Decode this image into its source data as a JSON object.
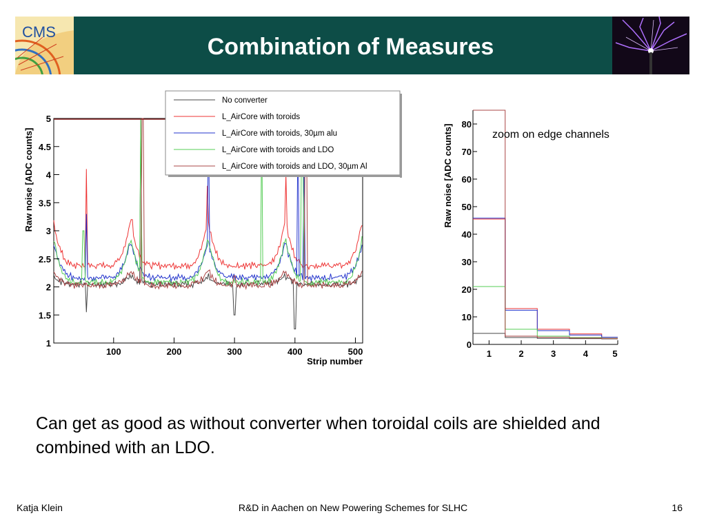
{
  "slide": {
    "title": "Combination of Measures",
    "caption": "Can get as good as without converter when toroidal coils are shielded and combined with an LDO.",
    "footer": {
      "author": "Katja Klein",
      "center": "R&D in Aachen on New Powering Schemes for SLHC",
      "page": "16"
    },
    "logo_text": "CMS",
    "colors": {
      "title_bg": "#0d4d47",
      "title_text": "#ffffff"
    }
  },
  "chart_data": [
    {
      "type": "line",
      "xlabel": "Strip number",
      "ylabel": "Raw noise [ADC counts]",
      "xlim": [
        1,
        512
      ],
      "ylim": [
        1,
        5
      ],
      "xticks": [
        "100",
        "200",
        "300",
        "400",
        "500"
      ],
      "yticks": [
        "1",
        "1.5",
        "2",
        "2.5",
        "3",
        "3.5",
        "4",
        "4.5",
        "5"
      ],
      "legend_position": "top-right",
      "series": [
        {
          "name": "No converter",
          "color": "#444444",
          "baseline": 2.05,
          "edge_peak": 2.2,
          "spikes": [
            [
              55,
              1.55
            ],
            [
              145,
              5.0
            ],
            [
              300,
              1.5
            ],
            [
              400,
              1.25
            ]
          ]
        },
        {
          "name": "L_AirCore with toroids",
          "color": "#ee3333",
          "baseline": 2.38,
          "edge_peak": 3.2,
          "spikes": [
            [
              55,
              4.1
            ],
            [
              130,
              3.2
            ],
            [
              255,
              3.8
            ],
            [
              385,
              4.0
            ],
            [
              520,
              4.0
            ]
          ]
        },
        {
          "name": "L_AirCore with toroids, 30µm alu",
          "color": "#2233cc",
          "baseline": 2.17,
          "edge_peak": 2.8,
          "spikes": [
            [
              55,
              3.3
            ],
            [
              257,
              5.0
            ],
            [
              405,
              5.0
            ],
            [
              415,
              4.3
            ],
            [
              520,
              3.6
            ]
          ]
        },
        {
          "name": "L_AirCore with toroids and LDO",
          "color": "#55cc55",
          "baseline": 2.08,
          "edge_peak": 2.9,
          "spikes": [
            [
              50,
              3.0
            ],
            [
              145,
              5.0
            ],
            [
              345,
              5.0
            ],
            [
              412,
              4.8
            ]
          ]
        },
        {
          "name": "L_AirCore with toroids and LDO, 30µm Al",
          "color": "#aa4444",
          "baseline": 2.03,
          "edge_peak": 2.3,
          "spikes": [
            [
              62,
              2.0
            ],
            [
              148,
              5.0
            ],
            [
              300,
              2.2
            ],
            [
              418,
              5.0
            ]
          ]
        }
      ]
    },
    {
      "type": "line",
      "subtype": "step",
      "annotation": "zoom on edge channels",
      "ylabel": "Raw noise [ADC counts]",
      "xlim": [
        0.5,
        5
      ],
      "ylim": [
        0,
        85
      ],
      "xticks": [
        "1",
        "2",
        "3",
        "4",
        "5"
      ],
      "yticks": [
        "0",
        "10",
        "20",
        "30",
        "40",
        "50",
        "60",
        "70",
        "80"
      ],
      "bins": [
        1,
        2,
        3,
        4,
        5
      ],
      "series": [
        {
          "name": "No converter",
          "color": "#444444",
          "values": [
            4,
            2.5,
            2.2,
            2.1,
            2.0
          ]
        },
        {
          "name": "L_AirCore with toroids",
          "color": "#ee3333",
          "values": [
            45.5,
            13.0,
            5.5,
            3.8,
            2.6
          ]
        },
        {
          "name": "L_AirCore with toroids, 30µm alu",
          "color": "#2233cc",
          "values": [
            45.8,
            12.4,
            5.0,
            3.4,
            2.6
          ]
        },
        {
          "name": "L_AirCore with toroids and LDO",
          "color": "#55cc55",
          "values": [
            21,
            5.5,
            3.0,
            2.5,
            2.2
          ]
        },
        {
          "name": "L_AirCore with toroids and LDO, 30µm Al",
          "color": "#aa4444",
          "values": [
            85,
            3.0,
            2.6,
            2.3,
            2.1
          ]
        }
      ]
    }
  ]
}
